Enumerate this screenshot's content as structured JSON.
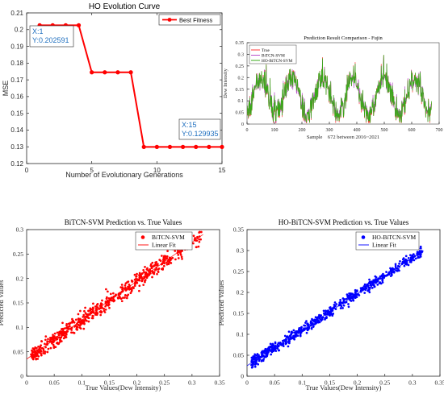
{
  "chart_data": [
    {
      "type": "line",
      "title": "HO Evolution Curve",
      "xlabel": "Number of Evolutionary Generations",
      "ylabel": "MSE",
      "xlim": [
        0,
        15
      ],
      "ylim": [
        0.12,
        0.21
      ],
      "xticks": [
        "0",
        "5",
        "10",
        "15"
      ],
      "yticks": [
        "0.12",
        "0.13",
        "0.14",
        "0.15",
        "0.16",
        "0.17",
        "0.18",
        "0.19",
        "0.2",
        "0.21"
      ],
      "grid": false,
      "legend_position": "top-right",
      "series": [
        {
          "name": "Best Fitness",
          "color": "#ff0000",
          "x": [
            1,
            2,
            3,
            4,
            5,
            6,
            7,
            8,
            9,
            10,
            11,
            12,
            13,
            14,
            15
          ],
          "values": [
            0.202591,
            0.202591,
            0.202591,
            0.202591,
            0.1745,
            0.1745,
            0.1745,
            0.1745,
            0.129935,
            0.129935,
            0.129935,
            0.129935,
            0.129935,
            0.129935,
            0.129935
          ]
        }
      ],
      "annotations": [
        {
          "x_text": "X:1",
          "y_text": "Y:0.202591",
          "x": 1,
          "y": 0.202591
        },
        {
          "x_text": "X:15",
          "y_text": "Y:0.129935",
          "x": 15,
          "y": 0.129935
        }
      ]
    },
    {
      "type": "line",
      "title": "Prediction Result Comparison - Fujin",
      "xlabel": "Sample　672 between 2016~2021",
      "ylabel": "Dew Intensity",
      "xlim": [
        0,
        700
      ],
      "ylim": [
        0,
        0.35
      ],
      "xticks": [
        "0",
        "100",
        "200",
        "300",
        "400",
        "500",
        "600",
        "700"
      ],
      "yticks": [
        "0",
        "0.05",
        "0.1",
        "0.15",
        "0.2",
        "0.25",
        "0.3",
        "0.35"
      ],
      "legend_position": "top-left",
      "series": [
        {
          "name": "True",
          "color": "#ff3b3b"
        },
        {
          "name": "BiTCN-SVM",
          "color": "#b84fc9"
        },
        {
          "name": "HO-BiTCN-SVM",
          "color": "#3aa81a"
        }
      ],
      "n_samples": 672
    },
    {
      "type": "scatter",
      "title": "BiTCN-SVM Prediction vs. True Values",
      "xlabel": "True Values(Dew Intensity)",
      "ylabel": "Predicted Values",
      "xlim": [
        0,
        0.35
      ],
      "ylim": [
        0,
        0.3
      ],
      "xticks": [
        "0",
        "0.05",
        "0.1",
        "0.15",
        "0.2",
        "0.25",
        "0.3",
        "0.35"
      ],
      "yticks": [
        "0",
        "0.05",
        "0.1",
        "0.15",
        "0.2",
        "0.25",
        "0.3"
      ],
      "legend_position": "top-right",
      "series": [
        {
          "name": "BiTCN-SVM",
          "color": "#ff0000",
          "marker": "dot"
        },
        {
          "name": "Linear Fit",
          "color": "#ff0000",
          "line": [
            [
              0,
              0.035
            ],
            [
              0.32,
              0.29
            ]
          ]
        }
      ]
    },
    {
      "type": "scatter",
      "title": "HO-BiTCN-SVM Prediction vs. True Values",
      "xlabel": "True Values(Dew Intensity)",
      "ylabel": "Predicted Values",
      "xlim": [
        0,
        0.35
      ],
      "ylim": [
        0,
        0.35
      ],
      "xticks": [
        "0",
        "0.05",
        "0.1",
        "0.15",
        "0.2",
        "0.25",
        "0.3",
        "0.35"
      ],
      "yticks": [
        "0",
        "0.05",
        "0.1",
        "0.15",
        "0.2",
        "0.25",
        "0.3",
        "0.35"
      ],
      "legend_position": "top-right",
      "series": [
        {
          "name": "HO-BiTCN-SVM",
          "color": "#0000ff",
          "marker": "dot"
        },
        {
          "name": "Linear Fit",
          "color": "#0000ff",
          "line": [
            [
              0,
              0.025
            ],
            [
              0.32,
              0.3
            ]
          ]
        }
      ]
    }
  ]
}
